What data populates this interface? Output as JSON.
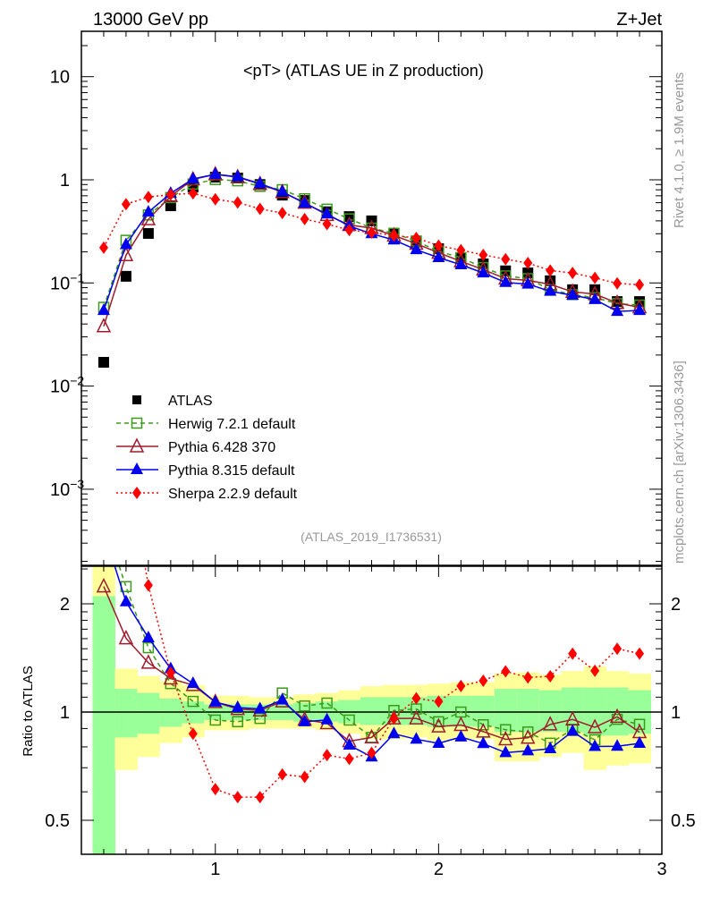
{
  "header": {
    "left": "13000 GeV pp",
    "right": "Z+Jet"
  },
  "side_text": {
    "rivet": "Rivet 4.1.0, ≥ 1.9M events",
    "mcplots": "mcplots.cern.ch [arXiv:1306.3436]"
  },
  "colors": {
    "atlas": "#000000",
    "herwig": "#3a9a1a",
    "pythia6": "#a01c2c",
    "pythia8": "#0000ee",
    "sherpa": "#ff0000",
    "band_inner": "#99ff99",
    "band_outer": "#ffff99"
  },
  "chart_data": [
    {
      "type": "line",
      "title": "<pT> (ATLAS UE in Z production)",
      "analysis": "(ATLAS_2019_I1736531)",
      "xlim": [
        0.4,
        3.0
      ],
      "ylim": [
        0.00018,
        27
      ],
      "yscale": "log",
      "yticks": [
        {
          "v": 10,
          "label": "10"
        },
        {
          "v": 1,
          "label": "1"
        },
        {
          "v": 0.1,
          "label": "10",
          "exp": "−1"
        },
        {
          "v": 0.01,
          "label": "10",
          "exp": "−2"
        },
        {
          "v": 0.001,
          "label": "10",
          "exp": "−3"
        }
      ],
      "legend_position": "lower-left",
      "x": [
        0.5,
        0.6,
        0.7,
        0.8,
        0.9,
        1.0,
        1.1,
        1.2,
        1.3,
        1.4,
        1.5,
        1.6,
        1.7,
        1.8,
        1.9,
        2.0,
        2.1,
        2.2,
        2.3,
        2.4,
        2.5,
        2.6,
        2.7,
        2.8,
        2.9
      ],
      "series": [
        {
          "name": "ATLAS",
          "key": "atlas",
          "marker": "square-filled",
          "line": "none",
          "values": [
            0.017,
            0.116,
            0.302,
            0.56,
            0.85,
            1.06,
            1.04,
            0.9,
            0.71,
            0.63,
            0.49,
            0.44,
            0.4,
            0.3,
            0.25,
            0.215,
            0.176,
            0.153,
            0.131,
            0.125,
            0.105,
            0.086,
            0.086,
            0.066,
            0.066
          ]
        },
        {
          "name": "Herwig 7.2.1 default",
          "key": "herwig",
          "marker": "square-open",
          "line": "dashed",
          "values": [
            0.058,
            0.259,
            0.456,
            0.672,
            0.91,
            1.007,
            0.978,
            0.864,
            0.802,
            0.655,
            0.519,
            0.418,
            0.34,
            0.303,
            0.255,
            0.202,
            0.176,
            0.141,
            0.117,
            0.11,
            0.086,
            0.077,
            0.072,
            0.063,
            0.061
          ]
        },
        {
          "name": "Pythia 6.428 370",
          "key": "pythia6",
          "marker": "triangle-open",
          "line": "solid",
          "values": [
            0.038,
            0.186,
            0.414,
            0.694,
            1.01,
            1.13,
            1.06,
            0.909,
            0.76,
            0.6,
            0.456,
            0.365,
            0.34,
            0.288,
            0.24,
            0.196,
            0.162,
            0.135,
            0.11,
            0.106,
            0.097,
            0.082,
            0.078,
            0.064,
            0.058
          ]
        },
        {
          "name": "Pythia 8.315 default",
          "key": "pythia8",
          "marker": "triangle-filled",
          "line": "solid",
          "values": [
            0.054,
            0.235,
            0.486,
            0.739,
            1.02,
            1.13,
            1.07,
            0.918,
            0.767,
            0.592,
            0.466,
            0.356,
            0.3,
            0.261,
            0.21,
            0.176,
            0.15,
            0.125,
            0.101,
            0.0975,
            0.083,
            0.076,
            0.069,
            0.053,
            0.054
          ]
        },
        {
          "name": "Sherpa 2.2.9 default",
          "key": "sherpa",
          "marker": "diamond-filled",
          "line": "dotted",
          "values": [
            0.22,
            0.58,
            0.68,
            0.72,
            0.74,
            0.647,
            0.603,
            0.522,
            0.476,
            0.416,
            0.372,
            0.326,
            0.308,
            0.288,
            0.273,
            0.23,
            0.208,
            0.187,
            0.17,
            0.156,
            0.132,
            0.125,
            0.112,
            0.099,
            0.096
          ]
        }
      ]
    },
    {
      "type": "line",
      "ylabel": "Ratio to ATLAS",
      "xlim": [
        0.4,
        3.0
      ],
      "ylim": [
        0.4,
        2.55
      ],
      "yscale": "log",
      "yticks": [
        {
          "v": 2,
          "label": "2"
        },
        {
          "v": 1,
          "label": "1"
        },
        {
          "v": 0.5,
          "label": "0.5"
        }
      ],
      "xticks": [
        {
          "v": 1,
          "label": "1"
        },
        {
          "v": 2,
          "label": "2"
        },
        {
          "v": 3,
          "label": "3"
        }
      ],
      "reference": "ATLAS",
      "band_inner": [
        [
          0.3,
          2.1
        ],
        [
          0.85,
          1.16
        ],
        [
          0.87,
          1.13
        ],
        [
          0.91,
          1.09
        ],
        [
          0.93,
          1.07
        ],
        [
          0.95,
          1.05
        ],
        [
          0.95,
          1.05
        ],
        [
          0.95,
          1.05
        ],
        [
          0.95,
          1.05
        ],
        [
          0.94,
          1.06
        ],
        [
          0.94,
          1.07
        ],
        [
          0.93,
          1.08
        ],
        [
          0.92,
          1.1
        ],
        [
          0.92,
          1.1
        ],
        [
          0.92,
          1.1
        ],
        [
          0.91,
          1.11
        ],
        [
          0.91,
          1.11
        ],
        [
          0.91,
          1.11
        ],
        [
          0.88,
          1.16
        ],
        [
          0.88,
          1.16
        ],
        [
          0.88,
          1.15
        ],
        [
          0.88,
          1.17
        ],
        [
          0.86,
          1.17
        ],
        [
          0.86,
          1.17
        ],
        [
          0.87,
          1.15
        ]
      ],
      "band_outer": [
        [
          0.3,
          2.6
        ],
        [
          0.69,
          1.32
        ],
        [
          0.75,
          1.26
        ],
        [
          0.82,
          1.22
        ],
        [
          0.85,
          1.19
        ],
        [
          0.89,
          1.11
        ],
        [
          0.89,
          1.11
        ],
        [
          0.9,
          1.1
        ],
        [
          0.9,
          1.1
        ],
        [
          0.9,
          1.12
        ],
        [
          0.89,
          1.13
        ],
        [
          0.87,
          1.15
        ],
        [
          0.84,
          1.18
        ],
        [
          0.84,
          1.19
        ],
        [
          0.85,
          1.19
        ],
        [
          0.83,
          1.2
        ],
        [
          0.84,
          1.21
        ],
        [
          0.84,
          1.21
        ],
        [
          0.73,
          1.28
        ],
        [
          0.73,
          1.29
        ],
        [
          0.75,
          1.27
        ],
        [
          0.77,
          1.3
        ],
        [
          0.69,
          1.34
        ],
        [
          0.71,
          1.3
        ],
        [
          0.72,
          1.28
        ]
      ],
      "bin_width": 0.1
    }
  ]
}
